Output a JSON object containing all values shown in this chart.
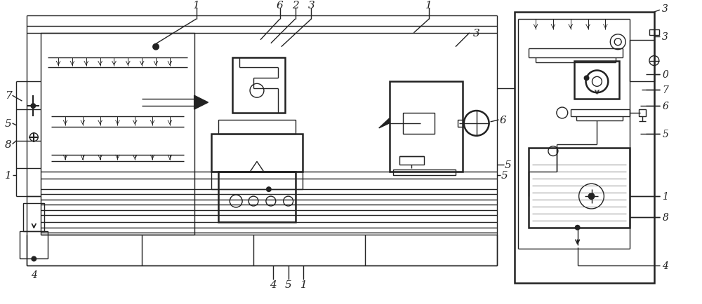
{
  "bg_color": "#ffffff",
  "line_color": "#222222",
  "fig_width": 10.0,
  "fig_height": 4.35,
  "dpi": 100
}
